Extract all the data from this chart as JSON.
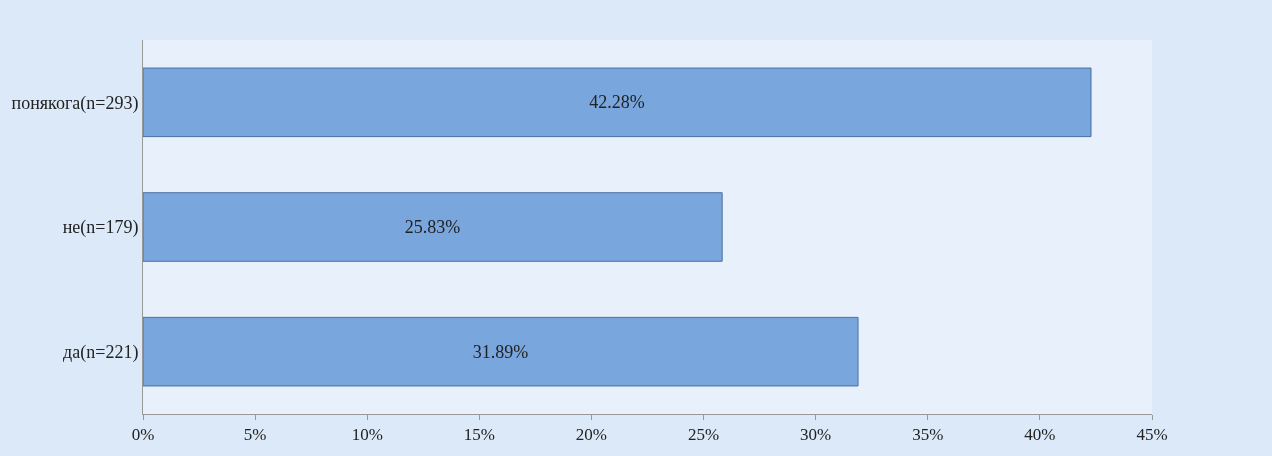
{
  "chart_data": {
    "type": "bar",
    "orientation": "horizontal",
    "categories": [
      "понякога(n=293)",
      "не(n=179)",
      "да(n=221)"
    ],
    "values": [
      42.28,
      25.83,
      31.89
    ],
    "value_labels": [
      "42.28%",
      "25.83%",
      "31.89%"
    ],
    "color": "#7aa6de",
    "xlim": [
      0,
      45
    ],
    "xticks": [
      {
        "value": 0,
        "label": "0%"
      },
      {
        "value": 5,
        "label": "5%"
      },
      {
        "value": 10,
        "label": "10%"
      },
      {
        "value": 15,
        "label": "15%"
      },
      {
        "value": 20,
        "label": "20%"
      },
      {
        "value": 25,
        "label": "25%"
      },
      {
        "value": 30,
        "label": "30%"
      },
      {
        "value": 35,
        "label": "35%"
      },
      {
        "value": 40,
        "label": "40%"
      },
      {
        "value": 45,
        "label": "45%"
      }
    ],
    "grid": false,
    "legend": false
  }
}
